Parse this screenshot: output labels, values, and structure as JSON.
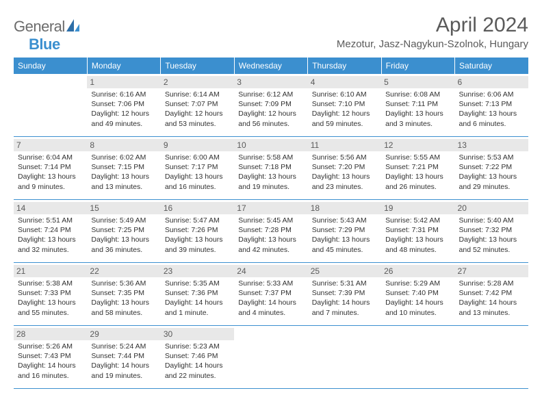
{
  "logo": {
    "text1": "General",
    "text2": "Blue"
  },
  "title": "April 2024",
  "location": "Mezotur, Jasz-Nagykun-Szolnok, Hungary",
  "weekdays": [
    "Sunday",
    "Monday",
    "Tuesday",
    "Wednesday",
    "Thursday",
    "Friday",
    "Saturday"
  ],
  "colors": {
    "header_bg": "#3b8fcf",
    "daynum_bg": "#e8e8e8",
    "row_border": "#3b8fcf",
    "text_gray": "#5a5a5a",
    "body_text": "#303030"
  },
  "weeks": [
    [
      {
        "n": "",
        "sr": "",
        "ss": "",
        "dl1": "",
        "dl2": ""
      },
      {
        "n": "1",
        "sr": "Sunrise: 6:16 AM",
        "ss": "Sunset: 7:06 PM",
        "dl1": "Daylight: 12 hours",
        "dl2": "and 49 minutes."
      },
      {
        "n": "2",
        "sr": "Sunrise: 6:14 AM",
        "ss": "Sunset: 7:07 PM",
        "dl1": "Daylight: 12 hours",
        "dl2": "and 53 minutes."
      },
      {
        "n": "3",
        "sr": "Sunrise: 6:12 AM",
        "ss": "Sunset: 7:09 PM",
        "dl1": "Daylight: 12 hours",
        "dl2": "and 56 minutes."
      },
      {
        "n": "4",
        "sr": "Sunrise: 6:10 AM",
        "ss": "Sunset: 7:10 PM",
        "dl1": "Daylight: 12 hours",
        "dl2": "and 59 minutes."
      },
      {
        "n": "5",
        "sr": "Sunrise: 6:08 AM",
        "ss": "Sunset: 7:11 PM",
        "dl1": "Daylight: 13 hours",
        "dl2": "and 3 minutes."
      },
      {
        "n": "6",
        "sr": "Sunrise: 6:06 AM",
        "ss": "Sunset: 7:13 PM",
        "dl1": "Daylight: 13 hours",
        "dl2": "and 6 minutes."
      }
    ],
    [
      {
        "n": "7",
        "sr": "Sunrise: 6:04 AM",
        "ss": "Sunset: 7:14 PM",
        "dl1": "Daylight: 13 hours",
        "dl2": "and 9 minutes."
      },
      {
        "n": "8",
        "sr": "Sunrise: 6:02 AM",
        "ss": "Sunset: 7:15 PM",
        "dl1": "Daylight: 13 hours",
        "dl2": "and 13 minutes."
      },
      {
        "n": "9",
        "sr": "Sunrise: 6:00 AM",
        "ss": "Sunset: 7:17 PM",
        "dl1": "Daylight: 13 hours",
        "dl2": "and 16 minutes."
      },
      {
        "n": "10",
        "sr": "Sunrise: 5:58 AM",
        "ss": "Sunset: 7:18 PM",
        "dl1": "Daylight: 13 hours",
        "dl2": "and 19 minutes."
      },
      {
        "n": "11",
        "sr": "Sunrise: 5:56 AM",
        "ss": "Sunset: 7:20 PM",
        "dl1": "Daylight: 13 hours",
        "dl2": "and 23 minutes."
      },
      {
        "n": "12",
        "sr": "Sunrise: 5:55 AM",
        "ss": "Sunset: 7:21 PM",
        "dl1": "Daylight: 13 hours",
        "dl2": "and 26 minutes."
      },
      {
        "n": "13",
        "sr": "Sunrise: 5:53 AM",
        "ss": "Sunset: 7:22 PM",
        "dl1": "Daylight: 13 hours",
        "dl2": "and 29 minutes."
      }
    ],
    [
      {
        "n": "14",
        "sr": "Sunrise: 5:51 AM",
        "ss": "Sunset: 7:24 PM",
        "dl1": "Daylight: 13 hours",
        "dl2": "and 32 minutes."
      },
      {
        "n": "15",
        "sr": "Sunrise: 5:49 AM",
        "ss": "Sunset: 7:25 PM",
        "dl1": "Daylight: 13 hours",
        "dl2": "and 36 minutes."
      },
      {
        "n": "16",
        "sr": "Sunrise: 5:47 AM",
        "ss": "Sunset: 7:26 PM",
        "dl1": "Daylight: 13 hours",
        "dl2": "and 39 minutes."
      },
      {
        "n": "17",
        "sr": "Sunrise: 5:45 AM",
        "ss": "Sunset: 7:28 PM",
        "dl1": "Daylight: 13 hours",
        "dl2": "and 42 minutes."
      },
      {
        "n": "18",
        "sr": "Sunrise: 5:43 AM",
        "ss": "Sunset: 7:29 PM",
        "dl1": "Daylight: 13 hours",
        "dl2": "and 45 minutes."
      },
      {
        "n": "19",
        "sr": "Sunrise: 5:42 AM",
        "ss": "Sunset: 7:31 PM",
        "dl1": "Daylight: 13 hours",
        "dl2": "and 48 minutes."
      },
      {
        "n": "20",
        "sr": "Sunrise: 5:40 AM",
        "ss": "Sunset: 7:32 PM",
        "dl1": "Daylight: 13 hours",
        "dl2": "and 52 minutes."
      }
    ],
    [
      {
        "n": "21",
        "sr": "Sunrise: 5:38 AM",
        "ss": "Sunset: 7:33 PM",
        "dl1": "Daylight: 13 hours",
        "dl2": "and 55 minutes."
      },
      {
        "n": "22",
        "sr": "Sunrise: 5:36 AM",
        "ss": "Sunset: 7:35 PM",
        "dl1": "Daylight: 13 hours",
        "dl2": "and 58 minutes."
      },
      {
        "n": "23",
        "sr": "Sunrise: 5:35 AM",
        "ss": "Sunset: 7:36 PM",
        "dl1": "Daylight: 14 hours",
        "dl2": "and 1 minute."
      },
      {
        "n": "24",
        "sr": "Sunrise: 5:33 AM",
        "ss": "Sunset: 7:37 PM",
        "dl1": "Daylight: 14 hours",
        "dl2": "and 4 minutes."
      },
      {
        "n": "25",
        "sr": "Sunrise: 5:31 AM",
        "ss": "Sunset: 7:39 PM",
        "dl1": "Daylight: 14 hours",
        "dl2": "and 7 minutes."
      },
      {
        "n": "26",
        "sr": "Sunrise: 5:29 AM",
        "ss": "Sunset: 7:40 PM",
        "dl1": "Daylight: 14 hours",
        "dl2": "and 10 minutes."
      },
      {
        "n": "27",
        "sr": "Sunrise: 5:28 AM",
        "ss": "Sunset: 7:42 PM",
        "dl1": "Daylight: 14 hours",
        "dl2": "and 13 minutes."
      }
    ],
    [
      {
        "n": "28",
        "sr": "Sunrise: 5:26 AM",
        "ss": "Sunset: 7:43 PM",
        "dl1": "Daylight: 14 hours",
        "dl2": "and 16 minutes."
      },
      {
        "n": "29",
        "sr": "Sunrise: 5:24 AM",
        "ss": "Sunset: 7:44 PM",
        "dl1": "Daylight: 14 hours",
        "dl2": "and 19 minutes."
      },
      {
        "n": "30",
        "sr": "Sunrise: 5:23 AM",
        "ss": "Sunset: 7:46 PM",
        "dl1": "Daylight: 14 hours",
        "dl2": "and 22 minutes."
      },
      {
        "n": "",
        "sr": "",
        "ss": "",
        "dl1": "",
        "dl2": ""
      },
      {
        "n": "",
        "sr": "",
        "ss": "",
        "dl1": "",
        "dl2": ""
      },
      {
        "n": "",
        "sr": "",
        "ss": "",
        "dl1": "",
        "dl2": ""
      },
      {
        "n": "",
        "sr": "",
        "ss": "",
        "dl1": "",
        "dl2": ""
      }
    ]
  ]
}
